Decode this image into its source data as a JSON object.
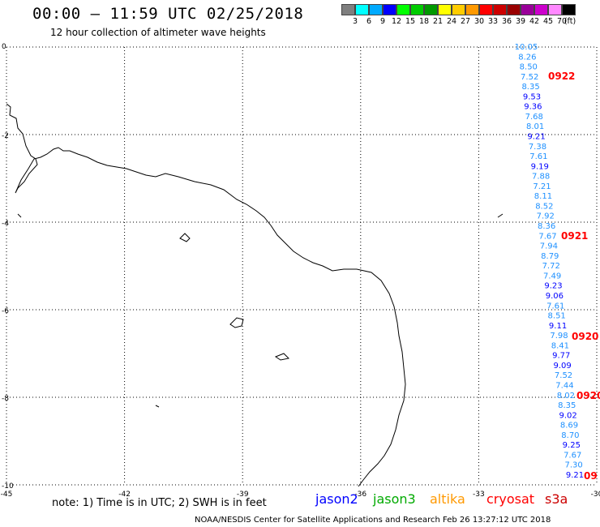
{
  "header": {
    "title": "00:00 – 11:59 UTC 02/25/2018",
    "subtitle": "12 hour collection of altimeter wave heights"
  },
  "scale": {
    "unit": "(ft)",
    "colors": [
      "#7f7f7f",
      "#00ffff",
      "#00aaff",
      "#0000ff",
      "#00ff00",
      "#00cc00",
      "#009900",
      "#ffff00",
      "#ffcc00",
      "#ff9900",
      "#ff0000",
      "#cc0000",
      "#990000",
      "#990099",
      "#cc00cc",
      "#ff88ff",
      "#000000"
    ],
    "labels": [
      "3",
      "6",
      "9",
      "12",
      "15",
      "18",
      "21",
      "24",
      "27",
      "30",
      "33",
      "36",
      "39",
      "42",
      "45",
      "70"
    ]
  },
  "map": {
    "x_ticks": [
      "-45",
      "-42",
      "-39",
      "-36",
      "-33",
      "-30"
    ],
    "y_ticks": [
      "0",
      "-2",
      "-4",
      "-6",
      "-8",
      "-10"
    ]
  },
  "wave_heights": [
    {
      "v": "10.05",
      "c": "#1e90ff"
    },
    {
      "v": "8.26",
      "c": "#1e90ff"
    },
    {
      "v": "8.50",
      "c": "#1e90ff"
    },
    {
      "v": "7.52",
      "c": "#1e90ff"
    },
    {
      "v": "8.35",
      "c": "#1e90ff"
    },
    {
      "v": "9.53",
      "c": "#0000ff"
    },
    {
      "v": "9.36",
      "c": "#0000ff"
    },
    {
      "v": "7.68",
      "c": "#1e90ff"
    },
    {
      "v": "8.01",
      "c": "#1e90ff"
    },
    {
      "v": "9.21",
      "c": "#0000ff"
    },
    {
      "v": "7.38",
      "c": "#1e90ff"
    },
    {
      "v": "7.61",
      "c": "#1e90ff"
    },
    {
      "v": "9.19",
      "c": "#0000ff"
    },
    {
      "v": "7.88",
      "c": "#1e90ff"
    },
    {
      "v": "7.21",
      "c": "#1e90ff"
    },
    {
      "v": "8.11",
      "c": "#1e90ff"
    },
    {
      "v": "8.52",
      "c": "#1e90ff"
    },
    {
      "v": "7.92",
      "c": "#1e90ff"
    },
    {
      "v": "8.36",
      "c": "#1e90ff"
    },
    {
      "v": "7.67",
      "c": "#1e90ff"
    },
    {
      "v": "7.94",
      "c": "#1e90ff"
    },
    {
      "v": "8.79",
      "c": "#1e90ff"
    },
    {
      "v": "7.72",
      "c": "#1e90ff"
    },
    {
      "v": "7.49",
      "c": "#1e90ff"
    },
    {
      "v": "9.23",
      "c": "#0000ff"
    },
    {
      "v": "9.06",
      "c": "#0000ff"
    },
    {
      "v": "7.61",
      "c": "#1e90ff"
    },
    {
      "v": "8.51",
      "c": "#1e90ff"
    },
    {
      "v": "9.11",
      "c": "#0000ff"
    },
    {
      "v": "7.98",
      "c": "#1e90ff"
    },
    {
      "v": "8.41",
      "c": "#1e90ff"
    },
    {
      "v": "9.77",
      "c": "#0000ff"
    },
    {
      "v": "9.09",
      "c": "#0000ff"
    },
    {
      "v": "7.52",
      "c": "#1e90ff"
    },
    {
      "v": "7.44",
      "c": "#1e90ff"
    },
    {
      "v": "8.02",
      "c": "#1e90ff"
    },
    {
      "v": "8.35",
      "c": "#1e90ff"
    },
    {
      "v": "9.02",
      "c": "#0000ff"
    },
    {
      "v": "8.69",
      "c": "#1e90ff"
    },
    {
      "v": "8.70",
      "c": "#1e90ff"
    },
    {
      "v": "9.25",
      "c": "#0000ff"
    },
    {
      "v": "7.67",
      "c": "#1e90ff"
    },
    {
      "v": "7.30",
      "c": "#1e90ff"
    },
    {
      "v": "9.21",
      "c": "#0000ff"
    }
  ],
  "pass_labels": [
    "0922",
    "0921",
    "0920",
    "0920",
    "09"
  ],
  "footer": {
    "note": "note:  1) Time is in UTC;  2) SWH is in feet",
    "satellites": [
      {
        "name": "jason2",
        "color": "#0000ff"
      },
      {
        "name": "jason3",
        "color": "#00aa00"
      },
      {
        "name": "altika",
        "color": "#ff9900"
      },
      {
        "name": "cryosat",
        "color": "#ff0000"
      },
      {
        "name": "s3a",
        "color": "#cc0000"
      }
    ],
    "credit": "NOAA/NESDIS Center for Satellite Applications and Research    Feb 26 13:27:12 UTC 2018"
  }
}
